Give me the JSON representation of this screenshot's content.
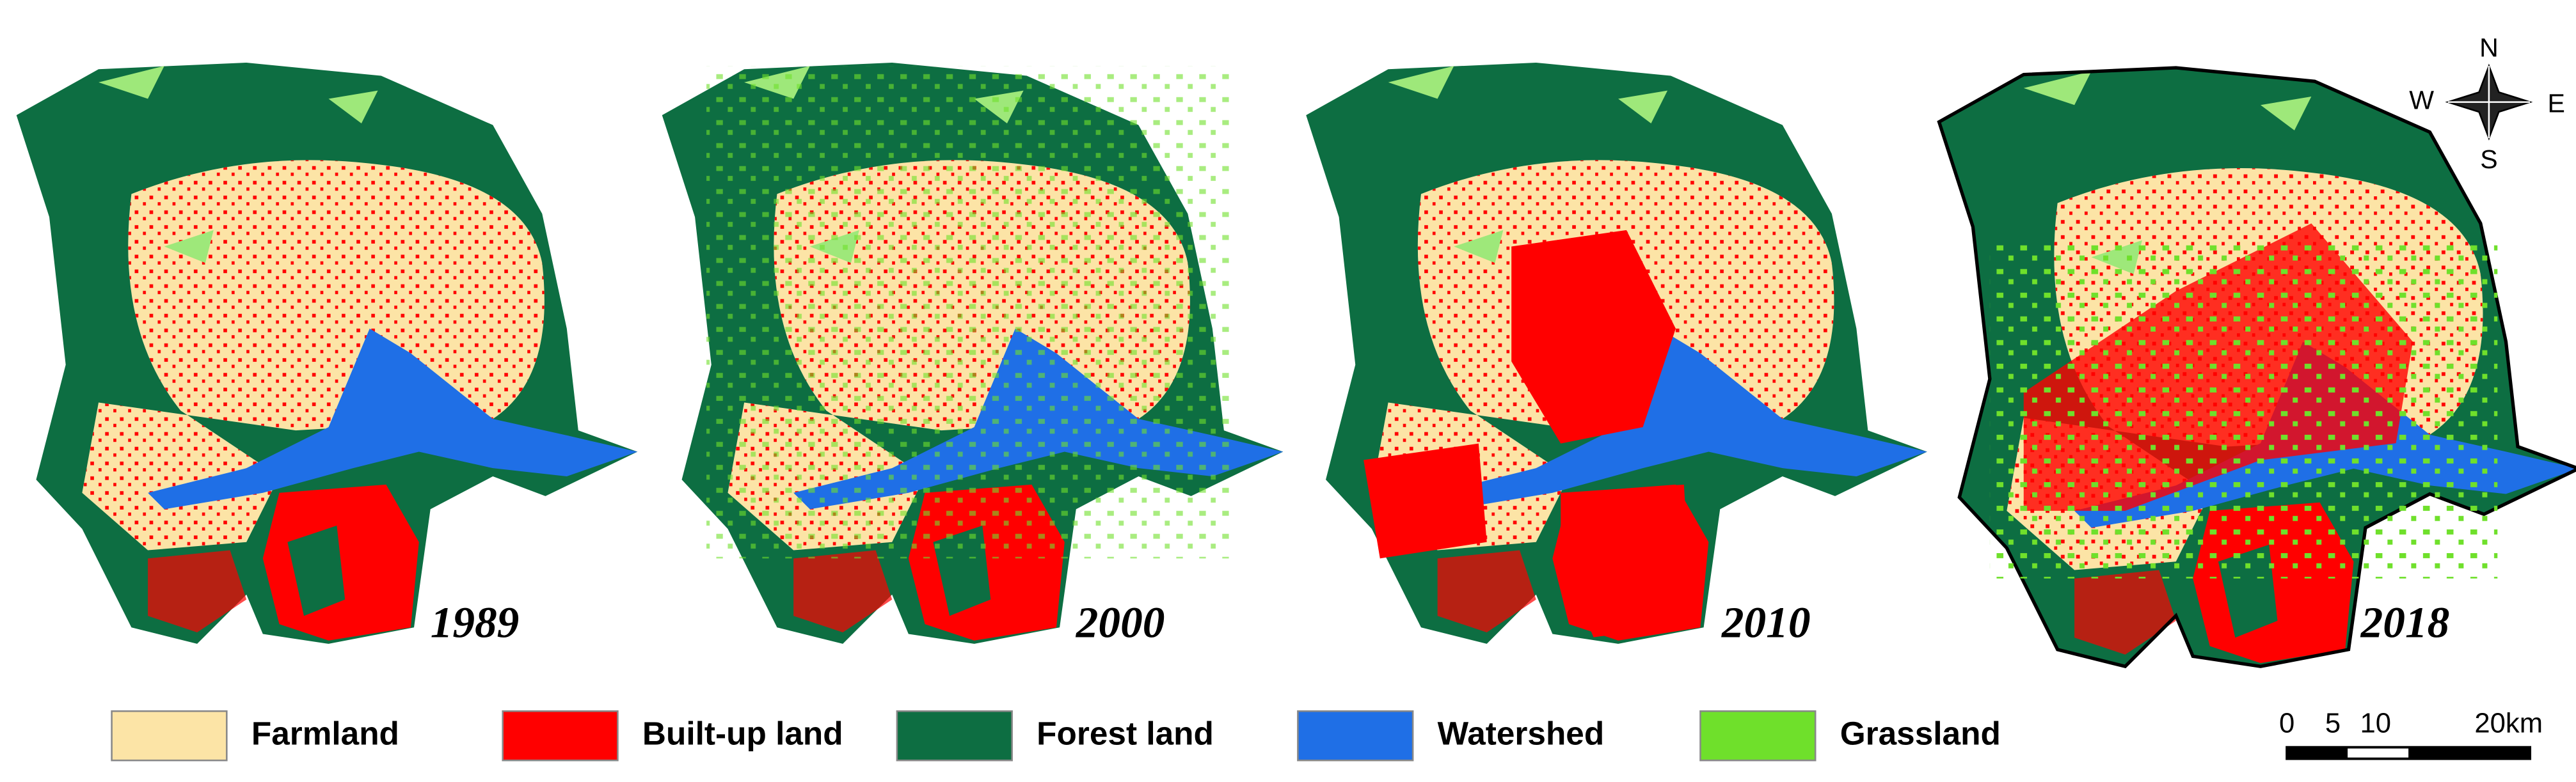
{
  "maps": [
    {
      "year": "1989"
    },
    {
      "year": "2000"
    },
    {
      "year": "2010"
    },
    {
      "year": "2018"
    }
  ],
  "legend": [
    {
      "label": "Farmland",
      "color": "#fce4a6"
    },
    {
      "label": "Built-up land",
      "color": "#ff0000"
    },
    {
      "label": "Forest land",
      "color": "#0d6e42"
    },
    {
      "label": "Watershed",
      "color": "#1f6fe6"
    },
    {
      "label": "Grassland",
      "color": "#6fe02b"
    }
  ],
  "compass": {
    "north": "N",
    "south": "S",
    "west": "W",
    "east": "E"
  },
  "scale_bar": {
    "ticks": [
      "0",
      "5",
      "10",
      "20km"
    ]
  }
}
